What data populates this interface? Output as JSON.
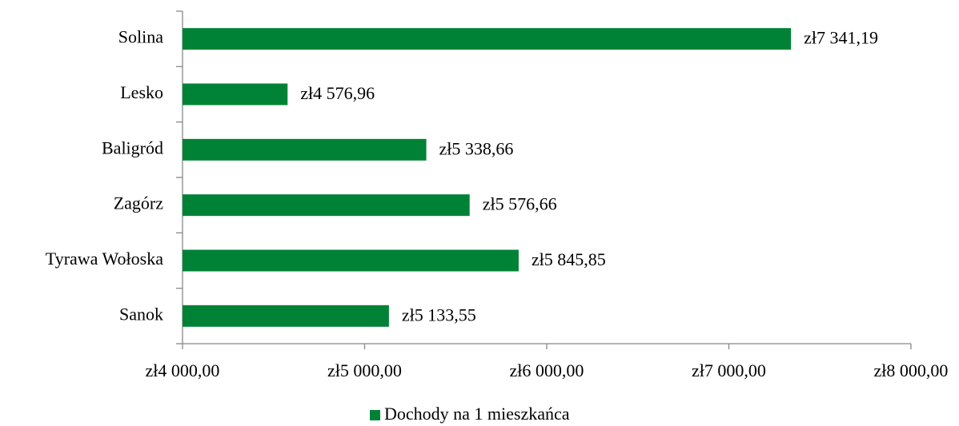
{
  "chart_data": {
    "type": "bar",
    "orientation": "horizontal",
    "categories": [
      "Solina",
      "Lesko",
      "Baligród",
      "Zagórz",
      "Tyrawa Wołoska",
      "Sanok"
    ],
    "series": [
      {
        "name": "Dochody na 1 mieszkańca",
        "color": "#008236",
        "values": [
          7341.19,
          4576.96,
          5338.66,
          5576.66,
          5845.85,
          5133.55
        ],
        "value_labels": [
          "zł7 341,19",
          "zł4 576,96",
          "zł5 338,66",
          "zł5 576,66",
          "zł5 845,85",
          "zł5 133,55"
        ]
      }
    ],
    "xlim": [
      4000,
      8000
    ],
    "xticks": [
      {
        "value": 4000,
        "label": "zł4 000,00"
      },
      {
        "value": 5000,
        "label": "zł5 000,00"
      },
      {
        "value": 6000,
        "label": "zł6 000,00"
      },
      {
        "value": 7000,
        "label": "zł7 000,00"
      },
      {
        "value": 8000,
        "label": "zł8 000,00"
      }
    ],
    "grid": false,
    "legend": "bottom"
  }
}
